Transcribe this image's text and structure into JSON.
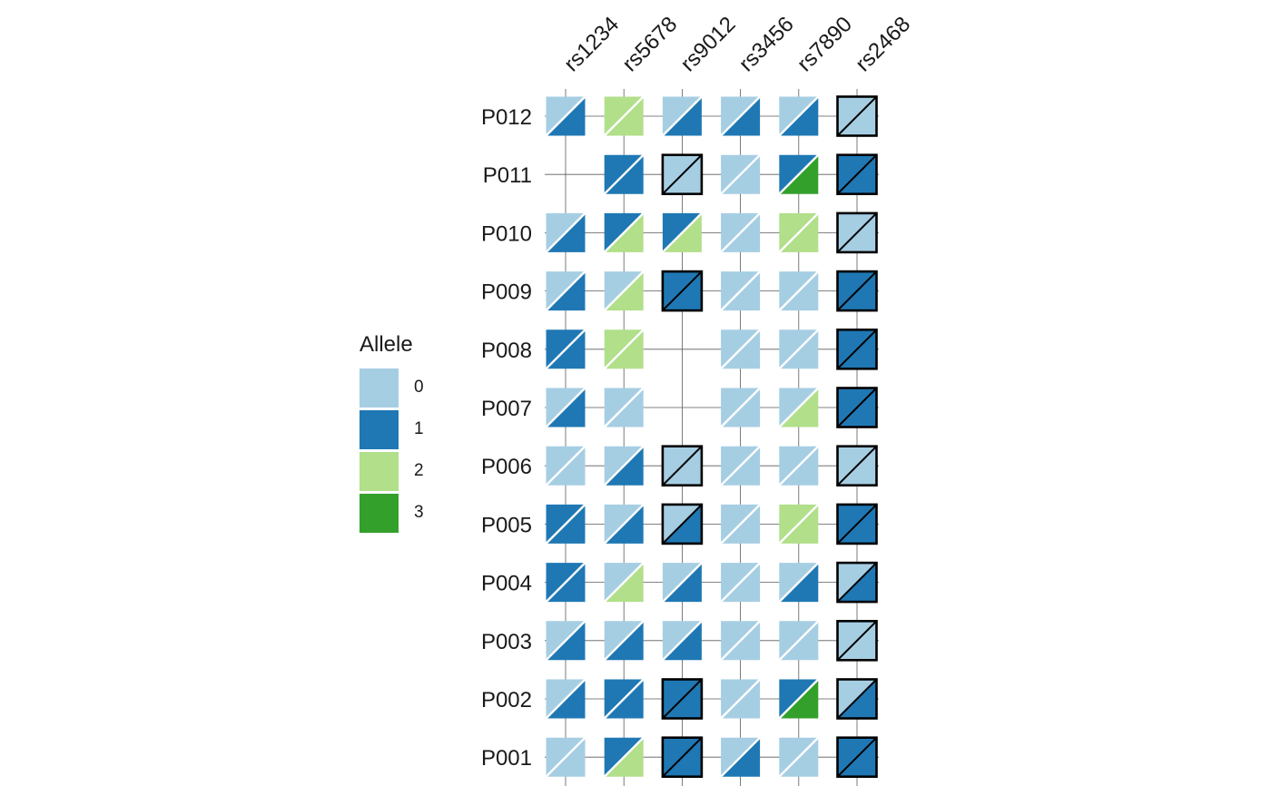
{
  "chart_data": {
    "type": "heatmap",
    "subtype": "paired-allele tile grid",
    "columns": [
      "rs1234",
      "rs5678",
      "rs9012",
      "rs3456",
      "rs7890",
      "rs2468"
    ],
    "rows": [
      "P012",
      "P011",
      "P010",
      "P009",
      "P008",
      "P007",
      "P006",
      "P005",
      "P004",
      "P003",
      "P002",
      "P001"
    ],
    "legend": {
      "title": "Allele",
      "placement": "left",
      "entries": [
        {
          "label": "0",
          "color": "#a6cee3"
        },
        {
          "label": "1",
          "color": "#1f78b4"
        },
        {
          "label": "2",
          "color": "#b2df8a"
        },
        {
          "label": "3",
          "color": "#33a02c"
        }
      ]
    },
    "cells": [
      [
        {
          "a1": 0,
          "a2": 1,
          "bold": false
        },
        {
          "a1": 2,
          "a2": 2,
          "bold": false
        },
        {
          "a1": 0,
          "a2": 1,
          "bold": false
        },
        {
          "a1": 0,
          "a2": 1,
          "bold": false
        },
        {
          "a1": 0,
          "a2": 1,
          "bold": false
        },
        {
          "a1": 0,
          "a2": 0,
          "bold": true
        }
      ],
      [
        null,
        {
          "a1": 1,
          "a2": 1,
          "bold": false
        },
        {
          "a1": 0,
          "a2": 0,
          "bold": true
        },
        {
          "a1": 0,
          "a2": 0,
          "bold": false
        },
        {
          "a1": 1,
          "a2": 3,
          "bold": false
        },
        {
          "a1": 1,
          "a2": 1,
          "bold": true
        }
      ],
      [
        {
          "a1": 0,
          "a2": 1,
          "bold": false
        },
        {
          "a1": 1,
          "a2": 2,
          "bold": false
        },
        {
          "a1": 1,
          "a2": 2,
          "bold": false
        },
        {
          "a1": 0,
          "a2": 0,
          "bold": false
        },
        {
          "a1": 2,
          "a2": 2,
          "bold": false
        },
        {
          "a1": 0,
          "a2": 0,
          "bold": true
        }
      ],
      [
        {
          "a1": 0,
          "a2": 1,
          "bold": false
        },
        {
          "a1": 0,
          "a2": 2,
          "bold": false
        },
        {
          "a1": 1,
          "a2": 1,
          "bold": true
        },
        {
          "a1": 0,
          "a2": 0,
          "bold": false
        },
        {
          "a1": 0,
          "a2": 0,
          "bold": false
        },
        {
          "a1": 1,
          "a2": 1,
          "bold": true
        }
      ],
      [
        {
          "a1": 1,
          "a2": 1,
          "bold": false
        },
        {
          "a1": 2,
          "a2": 2,
          "bold": false
        },
        null,
        {
          "a1": 0,
          "a2": 0,
          "bold": false
        },
        {
          "a1": 0,
          "a2": 0,
          "bold": false
        },
        {
          "a1": 1,
          "a2": 1,
          "bold": true
        }
      ],
      [
        {
          "a1": 0,
          "a2": 1,
          "bold": false
        },
        {
          "a1": 0,
          "a2": 0,
          "bold": false
        },
        null,
        {
          "a1": 0,
          "a2": 0,
          "bold": false
        },
        {
          "a1": 0,
          "a2": 2,
          "bold": false
        },
        {
          "a1": 1,
          "a2": 1,
          "bold": true
        }
      ],
      [
        {
          "a1": 0,
          "a2": 0,
          "bold": false
        },
        {
          "a1": 0,
          "a2": 1,
          "bold": false
        },
        {
          "a1": 0,
          "a2": 0,
          "bold": true
        },
        {
          "a1": 0,
          "a2": 0,
          "bold": false
        },
        {
          "a1": 0,
          "a2": 0,
          "bold": false
        },
        {
          "a1": 0,
          "a2": 0,
          "bold": true
        }
      ],
      [
        {
          "a1": 1,
          "a2": 1,
          "bold": false
        },
        {
          "a1": 0,
          "a2": 1,
          "bold": false
        },
        {
          "a1": 0,
          "a2": 1,
          "bold": true
        },
        {
          "a1": 0,
          "a2": 0,
          "bold": false
        },
        {
          "a1": 2,
          "a2": 2,
          "bold": false
        },
        {
          "a1": 1,
          "a2": 1,
          "bold": true
        }
      ],
      [
        {
          "a1": 1,
          "a2": 1,
          "bold": false
        },
        {
          "a1": 0,
          "a2": 2,
          "bold": false
        },
        {
          "a1": 0,
          "a2": 1,
          "bold": false
        },
        {
          "a1": 0,
          "a2": 0,
          "bold": false
        },
        {
          "a1": 0,
          "a2": 1,
          "bold": false
        },
        {
          "a1": 0,
          "a2": 1,
          "bold": true
        }
      ],
      [
        {
          "a1": 0,
          "a2": 1,
          "bold": false
        },
        {
          "a1": 0,
          "a2": 1,
          "bold": false
        },
        {
          "a1": 0,
          "a2": 1,
          "bold": false
        },
        {
          "a1": 0,
          "a2": 0,
          "bold": false
        },
        {
          "a1": 0,
          "a2": 0,
          "bold": false
        },
        {
          "a1": 0,
          "a2": 0,
          "bold": true
        }
      ],
      [
        {
          "a1": 0,
          "a2": 1,
          "bold": false
        },
        {
          "a1": 1,
          "a2": 1,
          "bold": false
        },
        {
          "a1": 1,
          "a2": 1,
          "bold": true
        },
        {
          "a1": 0,
          "a2": 0,
          "bold": false
        },
        {
          "a1": 1,
          "a2": 3,
          "bold": false
        },
        {
          "a1": 0,
          "a2": 1,
          "bold": true
        }
      ],
      [
        {
          "a1": 0,
          "a2": 0,
          "bold": false
        },
        {
          "a1": 1,
          "a2": 2,
          "bold": false
        },
        {
          "a1": 1,
          "a2": 1,
          "bold": true
        },
        {
          "a1": 0,
          "a2": 1,
          "bold": false
        },
        {
          "a1": 0,
          "a2": 0,
          "bold": false
        },
        {
          "a1": 1,
          "a2": 1,
          "bold": true
        }
      ]
    ]
  }
}
